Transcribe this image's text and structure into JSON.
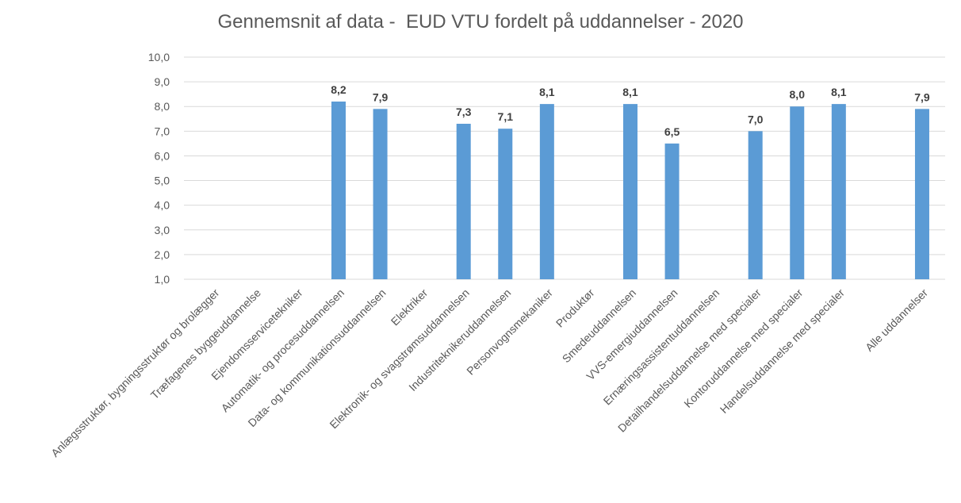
{
  "chart_data": {
    "type": "bar",
    "title": "Gennemsnit af data -  EUD VTU fordelt på uddannelser - 2020",
    "xlabel": "",
    "ylabel": "",
    "ylim": [
      1,
      10
    ],
    "yticks": [
      "1,0",
      "2,0",
      "3,0",
      "4,0",
      "5,0",
      "6,0",
      "7,0",
      "8,0",
      "9,0",
      "10,0"
    ],
    "grid": true,
    "legend": "none",
    "bar_color": "#5B9BD5",
    "categories": [
      "Anlægsstruktør, bygningsstruktør og brolægger",
      "Træfagenes byggeuddannelse",
      "Ejendomsservicetekniker",
      "Automatik- og procesuddannelsen",
      "Data- og kommunikationsuddannelsen",
      "Elektriker",
      "Elektronik- og svagstrømsuddannelsen",
      "Industriteknikeruddannelsen",
      "Personvognsmekaniker",
      "Produktør",
      "Smedeuddannelsen",
      "VVS-emergiuddannelsen",
      "Ernæringsassistentuddannelsen",
      "Detailhandelsuddannelse med specialer",
      "Kontoruddannelse med specialer",
      "Handelsuddannelse med specialer",
      "Alle uddannelser"
    ],
    "values": [
      null,
      null,
      null,
      8.2,
      7.9,
      null,
      7.3,
      7.1,
      8.1,
      null,
      8.1,
      6.5,
      null,
      7.0,
      8.0,
      8.1,
      7.9
    ],
    "data_labels": [
      null,
      null,
      null,
      "8,2",
      "7,9",
      null,
      "7,3",
      "7,1",
      "8,1",
      null,
      "8,1",
      "6,5",
      null,
      "7,0",
      "8,0",
      "8,1",
      "7,9"
    ]
  }
}
